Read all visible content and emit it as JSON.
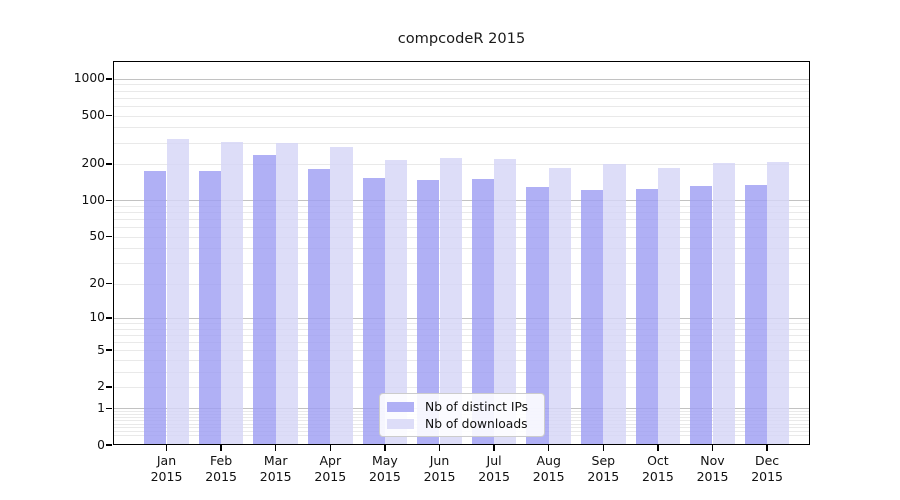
{
  "title": "compcodeR 2015",
  "chart_data": {
    "type": "bar",
    "title": "compcodeR 2015",
    "categories": [
      "Jan",
      "Feb",
      "Mar",
      "Apr",
      "May",
      "Jun",
      "Jul",
      "Aug",
      "Sep",
      "Oct",
      "Nov",
      "Dec"
    ],
    "year": "2015",
    "series": [
      {
        "name": "Nb of distinct IPs",
        "color": "#9f9ff3",
        "values": [
          176,
          175,
          237,
          183,
          153,
          148,
          151,
          129,
          122,
          124,
          131,
          134
        ]
      },
      {
        "name": "Nb of downloads",
        "color": "#d6d6f7",
        "values": [
          319,
          303,
          295,
          276,
          217,
          225,
          220,
          184,
          199,
          186,
          205,
          206
        ]
      }
    ],
    "xlabel": "",
    "ylabel": "",
    "yscale": "log1p",
    "yticks": [
      0,
      1,
      2,
      5,
      10,
      20,
      50,
      100,
      200,
      500,
      1000
    ],
    "ylim": [
      0,
      1400
    ],
    "grid": "both",
    "legend_position": "lower-center",
    "colors": {
      "bar_ips": "#9f9ff3",
      "bar_downloads": "#d6d6f7",
      "grid_minor": "#e9e9e9",
      "grid_major": "#c2c2c2",
      "spine": "#000000",
      "legend_border": "#cccccc"
    }
  }
}
